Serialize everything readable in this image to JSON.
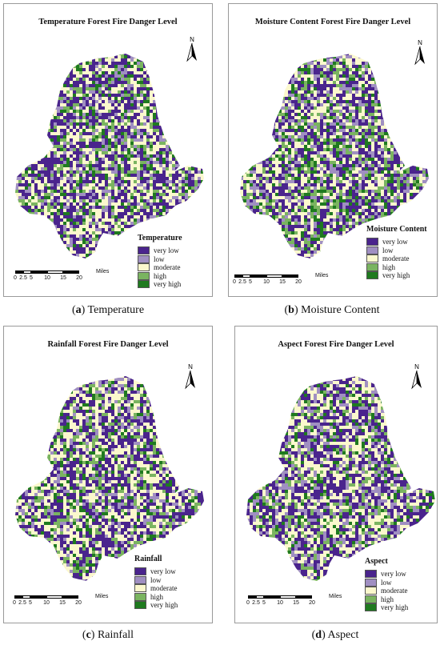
{
  "legend_colors": [
    "#4a248d",
    "#a08fc2",
    "#fbf8cd",
    "#7ab460",
    "#1f7a1f"
  ],
  "scale_ticks": [
    "0",
    "2.5",
    "5",
    "10",
    "15",
    "20"
  ],
  "scale_unit": "Miles",
  "north_label": "N",
  "north_icon": "north-arrow-icon",
  "legend_levels": [
    "very low",
    "low",
    "moderate",
    "high",
    "very high"
  ],
  "panels": [
    {
      "title": "Temperature Forest Fire Danger Level",
      "legend_title": "Temperature",
      "caption_letter": "a",
      "caption_text": " Temperature",
      "weights": [
        0.34,
        0.13,
        0.3,
        0.13,
        0.1
      ]
    },
    {
      "title": "Moisture Content Forest Fire Danger Level",
      "legend_title": "Moisture Content",
      "caption_letter": "b",
      "caption_text": " Moisture Content",
      "weights": [
        0.3,
        0.15,
        0.27,
        0.17,
        0.11
      ]
    },
    {
      "title": "Rainfall Forest Fire Danger Level",
      "legend_title": "Rainfall",
      "caption_letter": "c",
      "caption_text": " Rainfall",
      "weights": [
        0.33,
        0.12,
        0.34,
        0.12,
        0.09
      ]
    },
    {
      "title": "Aspect Forest Fire Danger Level",
      "legend_title": "Aspect",
      "caption_letter": "d",
      "caption_text": " Aspect",
      "weights": [
        0.32,
        0.15,
        0.31,
        0.13,
        0.09
      ]
    }
  ]
}
